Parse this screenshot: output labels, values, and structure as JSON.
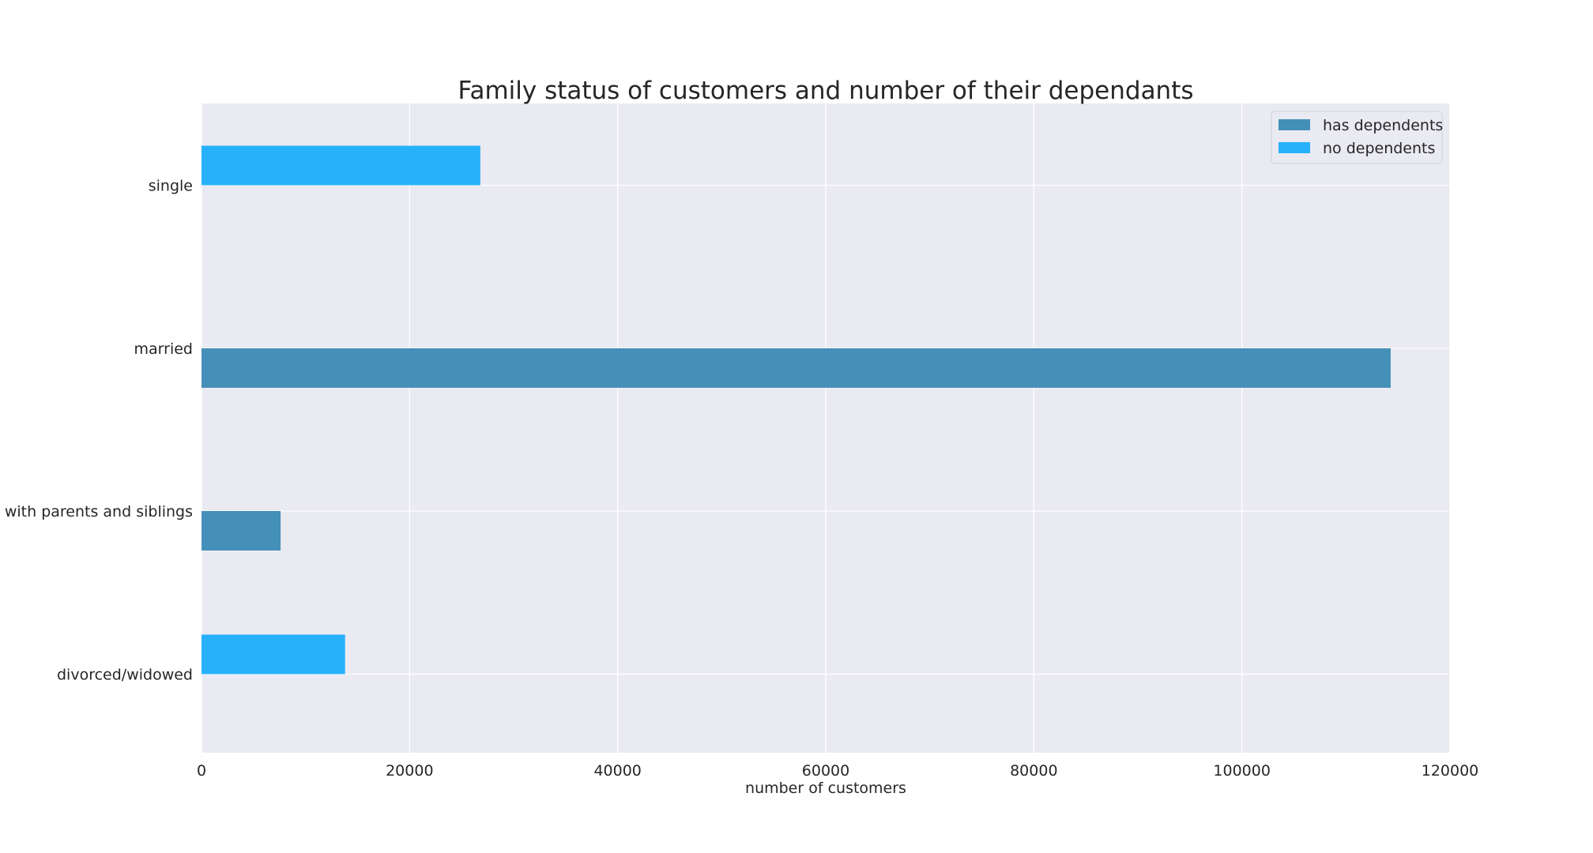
{
  "chart_data": {
    "type": "bar",
    "orientation": "horizontal",
    "title": "Family status of customers and number of their dependants",
    "xlabel": "number of customers",
    "ylabel": "",
    "xlim": [
      0,
      120000
    ],
    "x_ticks": [
      "0",
      "20000",
      "40000",
      "60000",
      "80000",
      "100000",
      "120000"
    ],
    "categories": [
      "single",
      "married",
      "living with parents and siblings",
      "divorced/widowed"
    ],
    "series": [
      {
        "name": "has dependents",
        "color": "#4590b9",
        "values": [
          0,
          114300,
          7600,
          0
        ]
      },
      {
        "name": "no dependents",
        "color": "#27b1fb",
        "values": [
          26800,
          0,
          0,
          13800
        ]
      }
    ],
    "grid": true,
    "legend_position": "top-right",
    "background_color": "#eaeaf2"
  }
}
